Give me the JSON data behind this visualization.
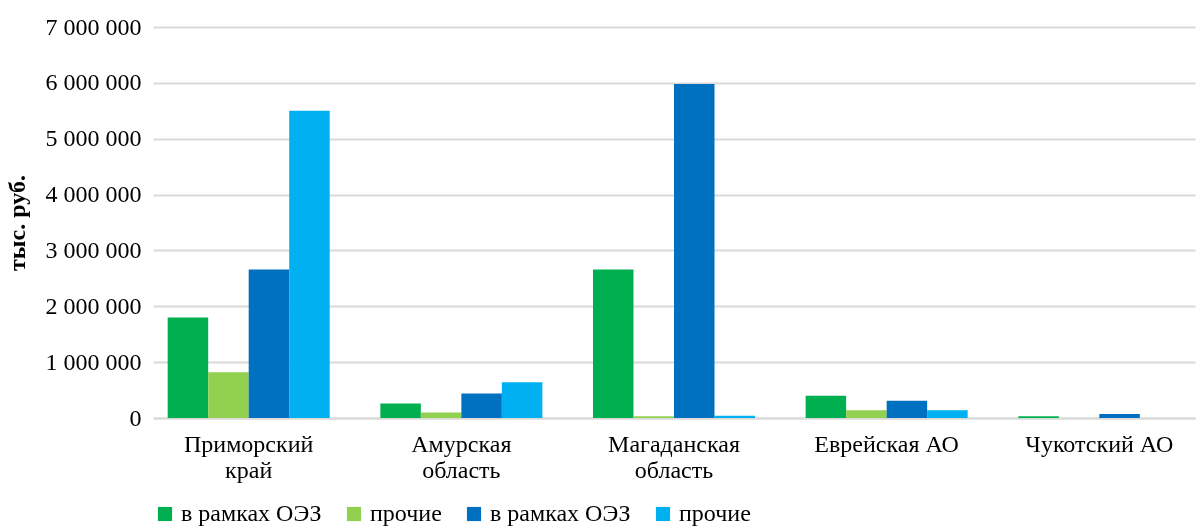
{
  "chart_data": {
    "type": "bar",
    "ylabel": "тыс. руб.",
    "categories": [
      "Приморский край",
      "Амурская область",
      "Магаданская область",
      "Еврейская АО",
      "Чукотский АО"
    ],
    "series": [
      {
        "name": "в рамках ОЭЗ",
        "color": "#00b050",
        "values": [
          1800000,
          260000,
          2660000,
          400000,
          30000
        ]
      },
      {
        "name": "прочие",
        "color": "#92d050",
        "values": [
          820000,
          100000,
          30000,
          140000,
          null
        ]
      },
      {
        "name": "в рамках ОЭЗ",
        "color": "#0070c0",
        "values": [
          2660000,
          440000,
          5980000,
          310000,
          70000
        ]
      },
      {
        "name": "прочие",
        "color": "#00b0f0",
        "values": [
          5500000,
          640000,
          40000,
          140000,
          null
        ]
      }
    ],
    "ylim": [
      0,
      7000000
    ],
    "yticks": [
      0,
      {
        "value": 1000000,
        "label": "1 000 000"
      },
      {
        "value": 2000000,
        "label": "2 000 000"
      },
      {
        "value": 3000000,
        "label": "3 000 000"
      },
      {
        "value": 4000000,
        "label": "4 000 000"
      },
      {
        "value": 5000000,
        "label": "5 000 000"
      },
      {
        "value": 6000000,
        "label": "6 000 000"
      },
      {
        "value": 7000000,
        "label": "7 000 000"
      }
    ],
    "grid": "y",
    "legend": "bottom"
  }
}
